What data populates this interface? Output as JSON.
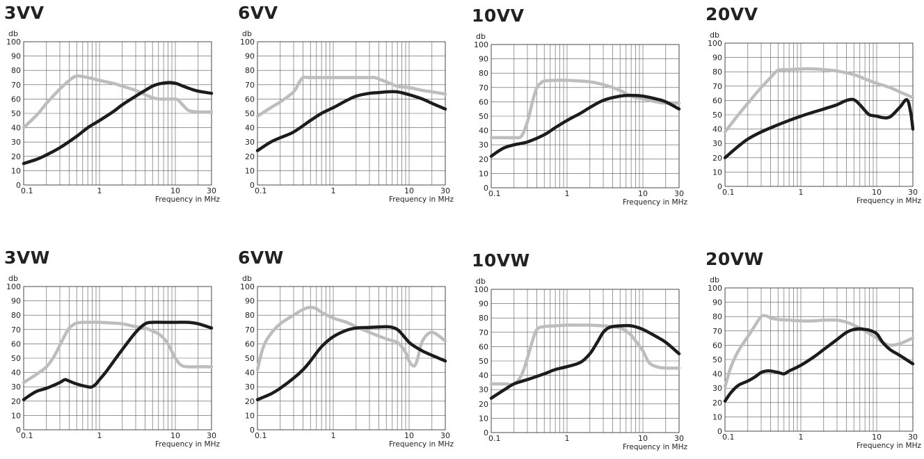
{
  "colors": {
    "series_dark": "#1c1c1c",
    "series_light": "#bdbdbd",
    "grid": "#555555"
  },
  "chart_data": [
    {
      "type": "line",
      "title": "3VV",
      "ylabel": "db",
      "xlabel": "Frequency in MHz",
      "x_scale": "log",
      "xlim": [
        0.1,
        30
      ],
      "ylim": [
        0,
        100
      ],
      "x_ticks": [
        0.1,
        1,
        10,
        30
      ],
      "x_tick_labels": [
        "0.1",
        "1",
        "10",
        "30"
      ],
      "y_ticks": [
        0,
        10,
        20,
        30,
        40,
        50,
        60,
        70,
        80,
        90,
        100
      ],
      "grid": true,
      "series": [
        {
          "color": "dark",
          "x": [
            0.1,
            0.15,
            0.2,
            0.3,
            0.5,
            0.7,
            1,
            1.5,
            2,
            3,
            4,
            5,
            6,
            8,
            10,
            12,
            15,
            20,
            30
          ],
          "y": [
            15,
            18,
            21,
            26,
            34,
            40,
            45,
            51,
            56,
            62,
            66,
            69,
            70.5,
            71.5,
            71,
            69.5,
            67.5,
            65.5,
            64
          ]
        },
        {
          "color": "light",
          "x": [
            0.1,
            0.15,
            0.2,
            0.3,
            0.4,
            0.5,
            0.7,
            1,
            1.5,
            2,
            3,
            4,
            5,
            6,
            8,
            10,
            11,
            13,
            15,
            20,
            30
          ],
          "y": [
            40,
            49,
            57,
            67,
            73,
            76,
            75,
            73,
            71,
            69,
            66,
            63,
            61,
            60,
            60,
            60,
            59,
            55,
            52,
            51,
            51
          ]
        }
      ]
    },
    {
      "type": "line",
      "title": "6VV",
      "ylabel": "db",
      "xlabel": "Frequency in MHz",
      "x_scale": "log",
      "xlim": [
        0.1,
        30
      ],
      "ylim": [
        0,
        100
      ],
      "x_ticks": [
        0.1,
        1,
        10,
        30
      ],
      "x_tick_labels": [
        "0.1",
        "1",
        "10",
        "30"
      ],
      "y_ticks": [
        0,
        10,
        20,
        30,
        40,
        50,
        60,
        70,
        80,
        90,
        100
      ],
      "grid": true,
      "series": [
        {
          "color": "dark",
          "x": [
            0.1,
            0.15,
            0.2,
            0.3,
            0.5,
            0.7,
            1,
            1.5,
            2,
            3,
            4,
            5,
            7,
            10,
            15,
            20,
            30
          ],
          "y": [
            24,
            30,
            33,
            37,
            45,
            50,
            54,
            59,
            62,
            64,
            64.5,
            65,
            65,
            63,
            60,
            57,
            53
          ]
        },
        {
          "color": "light",
          "x": [
            0.1,
            0.15,
            0.2,
            0.3,
            0.35,
            0.4,
            0.5,
            1,
            2,
            3,
            3.5,
            4,
            5,
            7,
            10,
            15,
            20,
            30
          ],
          "y": [
            48,
            54,
            58,
            65,
            71,
            75,
            75,
            75,
            75,
            75,
            75,
            74,
            72,
            69,
            68,
            66,
            65,
            63.5
          ]
        }
      ]
    },
    {
      "type": "line",
      "title": "10VV",
      "ylabel": "db",
      "xlabel": "Frequency in MHz",
      "x_scale": "log",
      "xlim": [
        0.1,
        30
      ],
      "ylim": [
        0,
        100
      ],
      "x_ticks": [
        0.1,
        1,
        10,
        30
      ],
      "x_tick_labels": [
        "0.1",
        "1",
        "10",
        "30"
      ],
      "y_ticks": [
        0,
        10,
        20,
        30,
        40,
        50,
        60,
        70,
        80,
        90,
        100
      ],
      "grid": true,
      "series": [
        {
          "color": "dark",
          "x": [
            0.1,
            0.12,
            0.15,
            0.2,
            0.3,
            0.5,
            0.7,
            1,
            1.5,
            2,
            3,
            5,
            7,
            10,
            15,
            20,
            30
          ],
          "y": [
            22,
            25,
            28,
            30,
            32,
            37,
            42,
            47,
            52,
            56,
            61,
            64,
            64.5,
            64,
            62,
            60,
            55
          ]
        },
        {
          "color": "light",
          "x": [
            0.1,
            0.15,
            0.2,
            0.25,
            0.3,
            0.35,
            0.4,
            0.45,
            0.5,
            0.7,
            1,
            1.5,
            2,
            3,
            5,
            7,
            10,
            15,
            20,
            30
          ],
          "y": [
            35,
            35,
            35,
            36,
            46,
            60,
            70,
            73,
            74.5,
            75,
            75,
            74.5,
            74,
            72,
            68,
            64,
            62,
            60,
            59,
            59
          ]
        }
      ]
    },
    {
      "type": "line",
      "title": "20VV",
      "ylabel": "db",
      "xlabel": "Frequency in MHz",
      "x_scale": "log",
      "xlim": [
        0.1,
        30
      ],
      "ylim": [
        0,
        100
      ],
      "x_ticks": [
        0.1,
        1,
        10,
        30
      ],
      "x_tick_labels": [
        "0.1",
        "1",
        "10",
        "30"
      ],
      "y_ticks": [
        0,
        10,
        20,
        30,
        40,
        50,
        60,
        70,
        80,
        90,
        100
      ],
      "grid": true,
      "series": [
        {
          "color": "dark",
          "x": [
            0.1,
            0.15,
            0.2,
            0.3,
            0.5,
            0.7,
            1,
            1.5,
            2,
            3,
            4,
            5,
            6,
            7,
            8,
            10,
            12,
            15,
            20,
            25,
            28,
            30
          ],
          "y": [
            20,
            28,
            33,
            38,
            43,
            46,
            49,
            52,
            54,
            57,
            60,
            60.5,
            57,
            53,
            50,
            49,
            48,
            48.5,
            55,
            60.5,
            52,
            40
          ]
        },
        {
          "color": "light",
          "x": [
            0.1,
            0.15,
            0.2,
            0.3,
            0.4,
            0.5,
            0.7,
            1,
            1.5,
            2,
            3,
            5,
            7,
            10,
            15,
            20,
            30
          ],
          "y": [
            38,
            50,
            58,
            69,
            76,
            81,
            81.5,
            82,
            82,
            81.5,
            80.5,
            78,
            75,
            72,
            69,
            66,
            62
          ]
        }
      ]
    },
    {
      "type": "line",
      "title": "3VW",
      "ylabel": "db",
      "xlabel": "Frequency in MHz",
      "x_scale": "log",
      "xlim": [
        0.1,
        30
      ],
      "ylim": [
        0,
        100
      ],
      "x_ticks": [
        0.1,
        1,
        10,
        30
      ],
      "x_tick_labels": [
        "0.1",
        "1",
        "10",
        "30"
      ],
      "y_ticks": [
        0,
        10,
        20,
        30,
        40,
        50,
        60,
        70,
        80,
        90,
        100
      ],
      "grid": true,
      "series": [
        {
          "color": "dark",
          "x": [
            0.1,
            0.12,
            0.15,
            0.2,
            0.3,
            0.35,
            0.4,
            0.5,
            0.7,
            0.8,
            0.9,
            1,
            1.2,
            1.5,
            2,
            3,
            4,
            5,
            7,
            10,
            15,
            20,
            30
          ],
          "y": [
            21,
            24,
            27,
            29,
            33,
            35,
            34,
            32,
            30,
            30,
            32,
            35,
            40,
            47,
            56,
            68,
            74,
            75,
            75,
            75,
            75,
            74,
            71
          ]
        },
        {
          "color": "light",
          "x": [
            0.1,
            0.15,
            0.2,
            0.25,
            0.3,
            0.35,
            0.4,
            0.5,
            0.7,
            1,
            1.5,
            2,
            3,
            4,
            5,
            6,
            7,
            8,
            10,
            12,
            15,
            20,
            30
          ],
          "y": [
            33,
            39,
            44,
            51,
            59,
            66,
            71,
            74.5,
            75,
            75,
            74.5,
            74,
            72,
            71,
            69,
            67,
            64,
            60,
            50,
            45,
            44,
            44,
            44
          ]
        }
      ]
    },
    {
      "type": "line",
      "title": "6VW",
      "ylabel": "db",
      "xlabel": "Frequency in MHz",
      "x_scale": "log",
      "xlim": [
        0.1,
        30
      ],
      "ylim": [
        0,
        100
      ],
      "x_ticks": [
        0.1,
        1,
        10,
        30
      ],
      "x_tick_labels": [
        "0.1",
        "1",
        "10",
        "30"
      ],
      "y_ticks": [
        0,
        10,
        20,
        30,
        40,
        50,
        60,
        70,
        80,
        90,
        100
      ],
      "grid": true,
      "series": [
        {
          "color": "dark",
          "x": [
            0.1,
            0.15,
            0.2,
            0.3,
            0.4,
            0.5,
            0.7,
            1,
            1.5,
            2,
            3,
            5,
            6,
            7,
            8,
            10,
            12,
            15,
            20,
            30
          ],
          "y": [
            21,
            25,
            29,
            36,
            42,
            48,
            58,
            65,
            69.5,
            71,
            71.5,
            72,
            71.5,
            70,
            67,
            61,
            58,
            55,
            52,
            48
          ]
        },
        {
          "color": "light",
          "x": [
            0.1,
            0.12,
            0.15,
            0.2,
            0.3,
            0.4,
            0.5,
            0.6,
            0.7,
            1,
            1.5,
            2,
            3,
            5,
            7,
            8,
            9,
            10,
            11,
            12,
            13,
            15,
            20,
            30
          ],
          "y": [
            42,
            58,
            67,
            74,
            80,
            84,
            85.5,
            84.5,
            82,
            78,
            75,
            72,
            68,
            63.5,
            61,
            58,
            54,
            48,
            45,
            45,
            50,
            62,
            68,
            62
          ]
        }
      ]
    },
    {
      "type": "line",
      "title": "10VW",
      "ylabel": "db",
      "xlabel": "Frequency in MHz",
      "x_scale": "log",
      "xlim": [
        0.1,
        30
      ],
      "ylim": [
        0,
        100
      ],
      "x_ticks": [
        0.1,
        1,
        10,
        30
      ],
      "x_tick_labels": [
        "0.1",
        "1",
        "10",
        "30"
      ],
      "y_ticks": [
        0,
        10,
        20,
        30,
        40,
        50,
        60,
        70,
        80,
        90,
        100
      ],
      "grid": true,
      "series": [
        {
          "color": "dark",
          "x": [
            0.1,
            0.15,
            0.2,
            0.3,
            0.5,
            0.7,
            1,
            1.5,
            2,
            2.5,
            3,
            3.5,
            4,
            5,
            7,
            10,
            15,
            20,
            30
          ],
          "y": [
            24,
            30,
            34,
            37,
            41,
            44,
            46,
            49,
            55,
            63,
            70,
            73,
            74,
            74.5,
            74.5,
            72,
            67,
            63,
            55
          ]
        },
        {
          "color": "light",
          "x": [
            0.1,
            0.15,
            0.2,
            0.25,
            0.3,
            0.35,
            0.4,
            0.5,
            0.7,
            1,
            1.5,
            2,
            3,
            4,
            5,
            6,
            7,
            8,
            10,
            12,
            15,
            20,
            30
          ],
          "y": [
            34,
            34,
            34,
            40,
            52,
            64,
            72,
            74,
            74.5,
            75,
            75,
            75,
            74.5,
            74,
            73,
            71,
            68,
            64,
            57,
            49,
            46,
            45,
            45
          ]
        }
      ]
    },
    {
      "type": "line",
      "title": "20VW",
      "ylabel": "db",
      "xlabel": "Frequency in MHz",
      "x_scale": "log",
      "xlim": [
        0.1,
        30
      ],
      "ylim": [
        0,
        100
      ],
      "x_ticks": [
        0.1,
        1,
        10,
        30
      ],
      "x_tick_labels": [
        "0.1",
        "1",
        "10",
        "30"
      ],
      "y_ticks": [
        0,
        10,
        20,
        30,
        40,
        50,
        60,
        70,
        80,
        90,
        100
      ],
      "grid": true,
      "series": [
        {
          "color": "dark",
          "x": [
            0.1,
            0.12,
            0.15,
            0.2,
            0.25,
            0.3,
            0.35,
            0.4,
            0.5,
            0.6,
            0.7,
            1,
            1.5,
            2,
            3,
            4,
            5,
            6,
            7,
            8,
            10,
            12,
            15,
            20,
            30
          ],
          "y": [
            21,
            27,
            32,
            35,
            38,
            41,
            42,
            42,
            41,
            40,
            42,
            46,
            52,
            57,
            64,
            69,
            71,
            71.5,
            71,
            70.5,
            68,
            62,
            57,
            53,
            47
          ]
        },
        {
          "color": "light",
          "x": [
            0.1,
            0.12,
            0.15,
            0.2,
            0.25,
            0.3,
            0.35,
            0.4,
            0.5,
            0.7,
            1,
            1.5,
            2,
            3,
            4,
            5,
            7,
            10,
            12,
            15,
            20,
            30
          ],
          "y": [
            31,
            45,
            56,
            66,
            74,
            80,
            80.5,
            79,
            78,
            77.5,
            77,
            77,
            77.5,
            77.5,
            76,
            74,
            70,
            65,
            62,
            60,
            61,
            65
          ]
        }
      ]
    }
  ]
}
